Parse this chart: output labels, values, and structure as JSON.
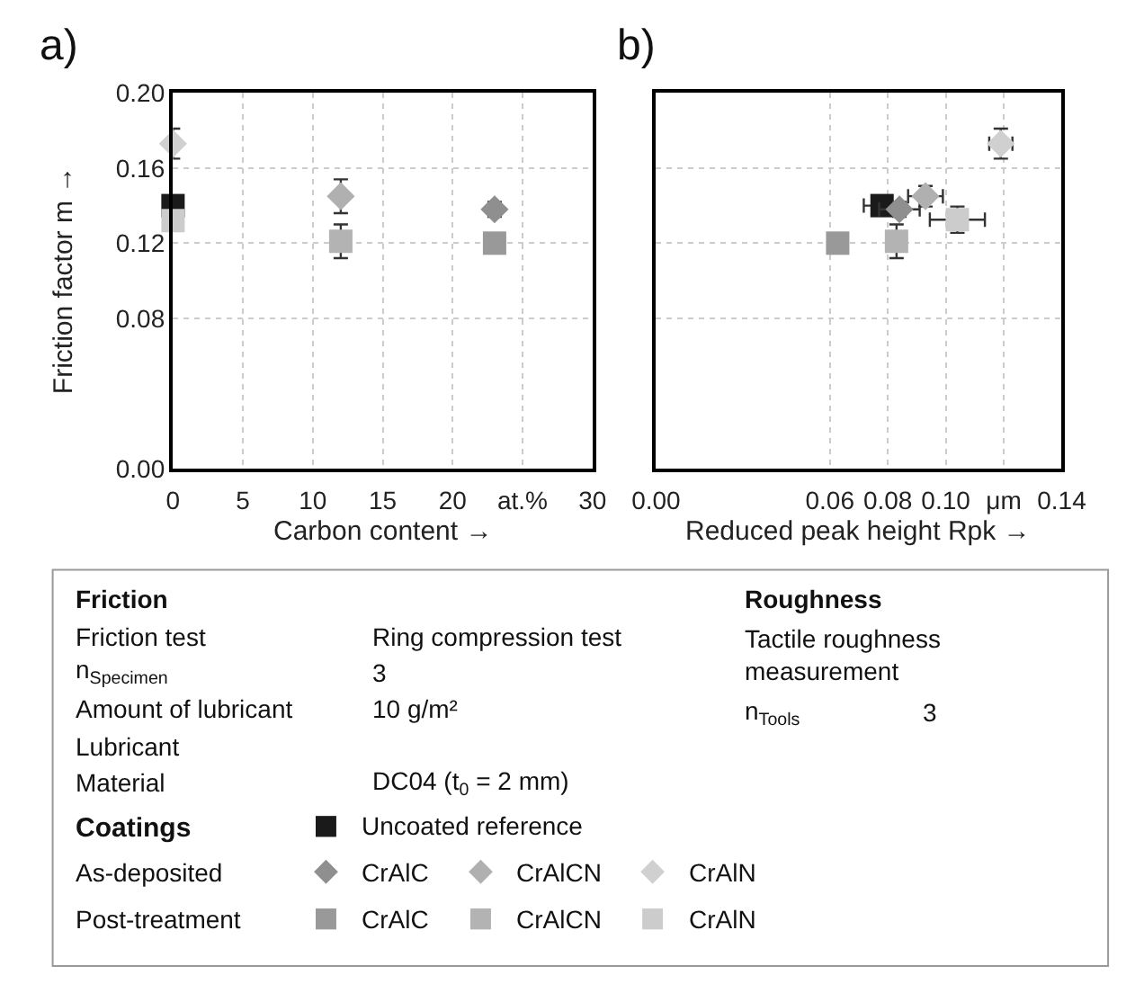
{
  "chart_data": [
    {
      "type": "scatter",
      "title": "a)",
      "xlabel": "Carbon content →",
      "ylabel": "Friction factor m →",
      "xlim": [
        0,
        30
      ],
      "xticks": [
        0,
        5,
        10,
        15,
        20,
        {
          "value": 25,
          "label": "at.%"
        },
        30
      ],
      "ylim": [
        0,
        0.2
      ],
      "yticks": [
        {
          "value": 0,
          "label": "0.00"
        },
        0.08,
        0.12,
        0.16,
        {
          "value": 0.2,
          "label": "0.20"
        }
      ],
      "grid": true,
      "legend": "bottom",
      "legend_title": "Coatings",
      "series": [
        {
          "name": "Uncoated reference",
          "color": "#1a1a1a",
          "marker": "square",
          "x": [
            0
          ],
          "values": [
            0.14
          ]
        },
        {
          "name": "CrAlC",
          "color": "#8f8f8f",
          "marker": "diamond",
          "x": [
            23
          ],
          "values": [
            0.138
          ],
          "errors": [
            0.004
          ]
        },
        {
          "name": "CrAlCN",
          "color": "#b0b0b0",
          "marker": "diamond",
          "x": [
            12
          ],
          "values": [
            0.145
          ],
          "errors": [
            0.009
          ]
        },
        {
          "name": "CrAlN",
          "color": "#d0d0d0",
          "marker": "diamond",
          "x": [
            0
          ],
          "values": [
            0.173
          ],
          "errors": [
            0.008
          ]
        },
        {
          "name": "CrAlC",
          "color": "#999999",
          "marker": "square",
          "x": [
            23
          ],
          "values": [
            0.12
          ]
        },
        {
          "name": "CrAlCN",
          "color": "#b3b3b3",
          "marker": "square",
          "x": [
            12
          ],
          "values": [
            0.121
          ],
          "errors": [
            0.009
          ]
        },
        {
          "name": "CrAlN",
          "color": "#cccccc",
          "marker": "square",
          "x": [
            0
          ],
          "values": [
            0.132
          ]
        }
      ]
    },
    {
      "type": "scatter",
      "title": "b)",
      "xlabel": "Reduced peak height Rpk →",
      "xlim": [
        0,
        0.14
      ],
      "xticks": [
        {
          "value": 0,
          "label": "0.00"
        },
        0.06,
        0.08,
        {
          "value": 0.1,
          "label": "0.10"
        },
        {
          "value": 0.12,
          "label": "μm"
        },
        0.14
      ],
      "ylim": [
        0,
        0.2
      ],
      "yticks": [
        0,
        0.08,
        0.12,
        0.16,
        0.2
      ],
      "tick_labels": "x",
      "grid": true,
      "series": [
        {
          "color": "#1a1a1a",
          "marker": "square",
          "x": [
            0.078
          ],
          "values": [
            0.14
          ],
          "xerrors": [
            0.0063
          ]
        },
        {
          "color": "#8f8f8f",
          "marker": "diamond",
          "x": [
            0.084
          ],
          "values": [
            0.138
          ],
          "errors": [
            0.004
          ],
          "xerrors": [
            0.007
          ]
        },
        {
          "color": "#b0b0b0",
          "marker": "diamond",
          "x": [
            0.093
          ],
          "values": [
            0.145
          ],
          "errors": [
            0.0055
          ],
          "xerrors": [
            0.006
          ]
        },
        {
          "color": "#d0d0d0",
          "marker": "diamond",
          "x": [
            0.119
          ],
          "values": [
            0.173
          ],
          "errors": [
            0.008
          ],
          "xerrors": [
            0.004
          ]
        },
        {
          "color": "#999999",
          "marker": "square",
          "x": [
            0.0627
          ],
          "values": [
            0.12
          ]
        },
        {
          "color": "#b3b3b3",
          "marker": "square",
          "x": [
            0.083
          ],
          "values": [
            0.121
          ],
          "errors": [
            0.009
          ]
        },
        {
          "color": "#cccccc",
          "marker": "square",
          "x": [
            0.104
          ],
          "values": [
            0.1325
          ],
          "errors": [
            0.007
          ],
          "xerrors": [
            0.0095
          ]
        }
      ]
    },
    {
      "type": "other",
      "annotations": [
        "Friction",
        "Friction test",
        "Ring compression test",
        "n$_{Specimen}$",
        "3",
        "Amount of lubricant",
        "10 g/m²",
        "Lubricant",
        "Material",
        "DC04 (t$_{0}$ = 2 mm)",
        "Roughness",
        "Tactile roughness measurement",
        "n$_{Tools}$",
        "3",
        "As-deposited",
        "Post-treatment"
      ]
    }
  ]
}
